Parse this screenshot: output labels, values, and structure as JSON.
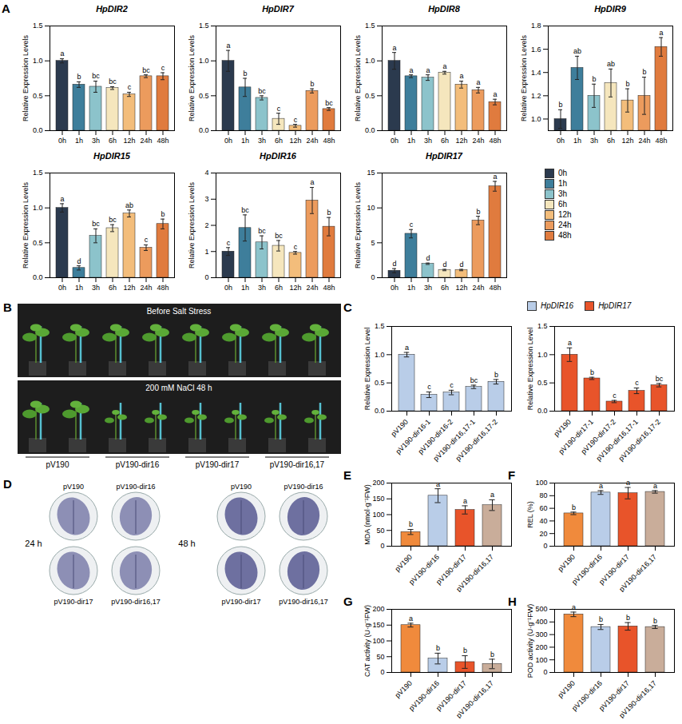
{
  "chart_data": [
    {
      "type": "bar",
      "panel": "A",
      "title": "HpDIR2",
      "y_label": "Relative Expression Levels",
      "categories": [
        "0h",
        "1h",
        "3h",
        "6h",
        "12h",
        "24h",
        "48h"
      ],
      "colors": [
        "#2b3a4e",
        "#3e7e9b",
        "#8cc3cb",
        "#f5e6bd",
        "#f3bd7b",
        "#ec9b5d",
        "#e07b3e"
      ],
      "values": [
        1.0,
        0.66,
        0.63,
        0.61,
        0.52,
        0.78,
        0.78
      ],
      "errors": [
        0.03,
        0.04,
        0.08,
        0.02,
        0.03,
        0.02,
        0.05
      ],
      "letters": [
        "a",
        "b",
        "bc",
        "bc",
        "c",
        "bc",
        "c"
      ],
      "ylim": [
        0,
        1.5
      ],
      "yticks": [
        {
          "value": 0,
          "label": "0.0"
        },
        0.5,
        {
          "value": 1,
          "label": "1.0"
        },
        1.5
      ]
    },
    {
      "type": "bar",
      "title": "HpDIR7",
      "y_label": "Relative Expression Levels",
      "categories": [
        "0h",
        "1h",
        "3h",
        "6h",
        "12h",
        "24h",
        "48h"
      ],
      "colors": [
        "#2b3a4e",
        "#3e7e9b",
        "#8cc3cb",
        "#f5e6bd",
        "#f3bd7b",
        "#ec9b5d",
        "#e07b3e"
      ],
      "values": [
        1.0,
        0.62,
        0.47,
        0.17,
        0.07,
        0.57,
        0.31
      ],
      "errors": [
        0.15,
        0.13,
        0.03,
        0.08,
        0.02,
        0.03,
        0.02
      ],
      "letters": [
        "a",
        "b",
        "bc",
        "c",
        "c",
        "b",
        "bc"
      ],
      "ylim": [
        0,
        1.5
      ],
      "yticks": [
        {
          "value": 0,
          "label": "0.0"
        },
        0.5,
        {
          "value": 1,
          "label": "1.0"
        },
        1.5
      ]
    },
    {
      "type": "bar",
      "title": "HpDIR8",
      "y_label": "Relative Expression Levels",
      "categories": [
        "0h",
        "1h",
        "3h",
        "6h",
        "12h",
        "24h",
        "48h"
      ],
      "colors": [
        "#2b3a4e",
        "#3e7e9b",
        "#8cc3cb",
        "#f5e6bd",
        "#f3bd7b",
        "#ec9b5d",
        "#e07b3e"
      ],
      "values": [
        1.0,
        0.78,
        0.76,
        0.83,
        0.66,
        0.58,
        0.41
      ],
      "errors": [
        0.12,
        0.02,
        0.04,
        0.02,
        0.05,
        0.04,
        0.04
      ],
      "letters": [
        "a",
        "a",
        "a",
        "a",
        "a",
        "a",
        "a"
      ],
      "ylim": [
        0,
        1.5
      ],
      "yticks": [
        {
          "value": 0,
          "label": "0.0"
        },
        0.5,
        {
          "value": 1,
          "label": "1.0"
        },
        1.5
      ]
    },
    {
      "type": "bar",
      "title": "HpDIR9",
      "y_label": "Relative Expression Levels",
      "categories": [
        "0h",
        "1h",
        "3h",
        "6h",
        "12h",
        "24h",
        "48h"
      ],
      "colors": [
        "#2b3a4e",
        "#3e7e9b",
        "#8cc3cb",
        "#f5e6bd",
        "#f3bd7b",
        "#ec9b5d",
        "#e07b3e"
      ],
      "values": [
        1.0,
        1.44,
        1.2,
        1.31,
        1.16,
        1.2,
        1.62
      ],
      "errors": [
        0.08,
        0.1,
        0.1,
        0.12,
        0.1,
        0.16,
        0.08
      ],
      "letters": [
        "b",
        "ab",
        "b",
        "ab",
        "b",
        "b",
        "a"
      ],
      "ylim": [
        0.9,
        1.8
      ],
      "yticks": [
        {
          "value": 1,
          "label": "1.0"
        },
        1.2,
        1.4,
        1.6,
        1.8
      ]
    },
    {
      "type": "bar",
      "title": "HpDIR15",
      "y_label": "Relative Expression Levels",
      "categories": [
        "0h",
        "1h",
        "3h",
        "6h",
        "12h",
        "24h",
        "48h"
      ],
      "colors": [
        "#2b3a4e",
        "#3e7e9b",
        "#8cc3cb",
        "#f5e6bd",
        "#f3bd7b",
        "#ec9b5d",
        "#e07b3e"
      ],
      "values": [
        1.0,
        0.14,
        0.6,
        0.71,
        0.92,
        0.43,
        0.77
      ],
      "errors": [
        0.06,
        0.03,
        0.1,
        0.05,
        0.05,
        0.04,
        0.07
      ],
      "letters": [
        "a",
        "d",
        "bc",
        "bc",
        "ab",
        "c",
        "b"
      ],
      "ylim": [
        0,
        1.5
      ],
      "yticks": [
        {
          "value": 0,
          "label": "0.0"
        },
        0.5,
        {
          "value": 1,
          "label": "1.0"
        },
        1.5
      ]
    },
    {
      "type": "bar",
      "title": "HpDIR16",
      "y_label": "Relative Expression Levels",
      "categories": [
        "0h",
        "1h",
        "3h",
        "6h",
        "12h",
        "24h",
        "48h"
      ],
      "colors": [
        "#2b3a4e",
        "#3e7e9b",
        "#8cc3cb",
        "#f5e6bd",
        "#f3bd7b",
        "#ec9b5d",
        "#e07b3e"
      ],
      "values": [
        1.0,
        1.9,
        1.35,
        1.22,
        0.95,
        2.95,
        1.95
      ],
      "errors": [
        0.15,
        0.5,
        0.25,
        0.2,
        0.05,
        0.5,
        0.35
      ],
      "letters": [
        "c",
        "bc",
        "bc",
        "bc",
        "c",
        "a",
        "b"
      ],
      "ylim": [
        0,
        4
      ],
      "yticks": [
        0,
        1,
        2,
        3,
        4
      ]
    },
    {
      "type": "bar",
      "title": "HpDIR17",
      "y_label": "Relative Expression Levels",
      "legend": "right",
      "categories": [
        "0h",
        "1h",
        "3h",
        "6h",
        "12h",
        "24h",
        "48h"
      ],
      "colors": [
        "#2b3a4e",
        "#3e7e9b",
        "#8cc3cb",
        "#f5e6bd",
        "#f3bd7b",
        "#ec9b5d",
        "#e07b3e"
      ],
      "values": [
        1.0,
        6.3,
        2.0,
        1.1,
        1.1,
        8.2,
        13.1
      ],
      "errors": [
        0.3,
        0.6,
        0.1,
        0.1,
        0.1,
        0.6,
        0.7
      ],
      "letters": [
        "d",
        "c",
        "d",
        "d",
        "d",
        "b",
        "a"
      ],
      "ylim": [
        0,
        15
      ],
      "yticks": [
        0,
        5,
        10,
        15
      ]
    },
    {
      "type": "bar",
      "panel": "C",
      "y_label": "Relative Expression Level",
      "legend": "top",
      "categories": [
        "pV190",
        "pV190-dir16-1",
        "pV190-dir16-2",
        "pV190-dir16,17-1",
        "pV190-dir16,17-2"
      ],
      "series": [
        {
          "name": "HpDIR16",
          "color": "#b9cde8",
          "values": [
            1.0,
            0.29,
            0.33,
            0.43,
            0.52
          ],
          "errors": [
            0.04,
            0.05,
            0.04,
            0.03,
            0.04
          ],
          "letters": [
            "a",
            "c",
            "c",
            "bc",
            "b"
          ]
        }
      ],
      "ylim": [
        0,
        1.5
      ],
      "yticks": [
        {
          "value": 0,
          "label": "0.0"
        },
        0.5,
        {
          "value": 1,
          "label": "1.0"
        },
        1.5
      ]
    },
    {
      "type": "bar",
      "y_label": "Relative Expression Level",
      "legend": "top",
      "categories": [
        "pV190",
        "pV190-dir17-1",
        "pV190-dir17-2",
        "pV190-dir16,17-1",
        "pV190-dir16,17-2"
      ],
      "series": [
        {
          "name": "HpDIR17",
          "color": "#e8542a",
          "values": [
            1.0,
            0.58,
            0.17,
            0.36,
            0.46
          ],
          "errors": [
            0.12,
            0.02,
            0.02,
            0.05,
            0.03
          ],
          "letters": [
            "a",
            "b",
            "c",
            "c",
            "bc"
          ]
        }
      ],
      "ylim": [
        0,
        1.5
      ],
      "yticks": [
        {
          "value": 0,
          "label": "0.0"
        },
        0.5,
        {
          "value": 1,
          "label": "1.0"
        },
        1.5
      ]
    },
    {
      "type": "bar",
      "panel": "E",
      "y_label": "MDA (nmol·g⁻¹FW)",
      "categories": [
        "pV190",
        "pV190-dir16",
        "pV190-dir17",
        "pV190-dir16,17"
      ],
      "colors": [
        "#f08a3c",
        "#b9cde8",
        "#e8542a",
        "#c9ad9a"
      ],
      "values": [
        45,
        160,
        115,
        130
      ],
      "errors": [
        8,
        22,
        13,
        17
      ],
      "letters": [
        "b",
        "a",
        "a",
        "a"
      ],
      "ylim": [
        0,
        200
      ],
      "yticks": [
        0,
        50,
        100,
        150,
        200
      ]
    },
    {
      "type": "bar",
      "panel": "F",
      "y_label": "REL (%)",
      "categories": [
        "pV190",
        "pV190-dir16",
        "pV190-dir17",
        "pV190-dir16,17"
      ],
      "colors": [
        "#f08a3c",
        "#b9cde8",
        "#e8542a",
        "#c9ad9a"
      ],
      "values": [
        52,
        85,
        84,
        86
      ],
      "errors": [
        2,
        3,
        9,
        2
      ],
      "letters": [
        "b",
        "a",
        "a",
        "a"
      ],
      "ylim": [
        0,
        100
      ],
      "yticks": [
        0,
        20,
        40,
        60,
        80,
        100
      ]
    },
    {
      "type": "bar",
      "panel": "G",
      "y_label": "CAT activity (U·g⁻¹FW)",
      "categories": [
        "pV190",
        "pV190-dir16",
        "pV190-dir17",
        "pV190-dir16,17"
      ],
      "colors": [
        "#f08a3c",
        "#b9cde8",
        "#e8542a",
        "#c9ad9a"
      ],
      "values": [
        150,
        44,
        33,
        27
      ],
      "errors": [
        6,
        17,
        20,
        15
      ],
      "letters": [
        "a",
        "b",
        "b",
        "b"
      ],
      "ylim": [
        0,
        200
      ],
      "yticks": [
        0,
        50,
        100,
        150,
        200
      ]
    },
    {
      "type": "bar",
      "panel": "H",
      "y_label": "POD activity (U·g⁻¹FW)",
      "categories": [
        "pV190",
        "pV190-dir16",
        "pV190-dir17",
        "pV190-dir16,17"
      ],
      "colors": [
        "#f08a3c",
        "#b9cde8",
        "#e8542a",
        "#c9ad9a"
      ],
      "values": [
        460,
        360,
        365,
        360
      ],
      "errors": [
        18,
        20,
        30,
        12
      ],
      "letters": [
        "a",
        "b",
        "b",
        "b"
      ],
      "ylim": [
        0,
        500
      ],
      "yticks": [
        0,
        100,
        200,
        300,
        400,
        500
      ]
    }
  ],
  "images": [
    {
      "panel": "B",
      "captions": [
        "Before Salt Stress",
        "200 mM NaCl 48 h"
      ],
      "labels": [
        "pV190",
        "pV190-dir16",
        "pV190-dir17",
        "pV190-dir16,17"
      ]
    },
    {
      "panel": "D",
      "times": [
        "24 h",
        "48 h"
      ],
      "labels": [
        "pV190",
        "pV190-dir16",
        "pV190-dir17",
        "pV190-dir16,17"
      ]
    }
  ]
}
